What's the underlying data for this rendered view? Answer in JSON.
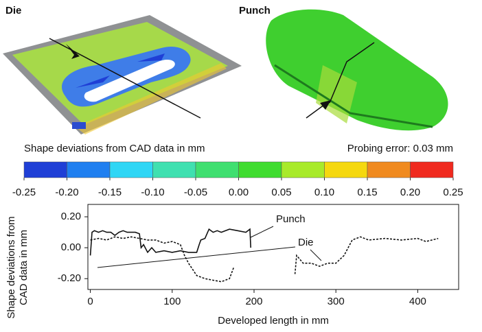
{
  "images": [
    {
      "label": "Die"
    },
    {
      "label": "Punch"
    }
  ],
  "chart_data": [
    {
      "type": "colorbar",
      "title": "Shape deviations from CAD data in mm",
      "annotation": "Probing error: 0.03 mm",
      "ticks": [
        -0.25,
        {
          "value": -0.2,
          "label": "-0.20"
        },
        -0.15,
        {
          "value": -0.1,
          "label": "-0.10"
        },
        -0.05,
        {
          "value": 0,
          "label": "0.00"
        },
        0.05,
        {
          "value": 0.1,
          "label": "0.10"
        },
        0.15,
        {
          "value": 0.2,
          "label": "0.20"
        },
        0.25
      ],
      "colors": [
        "#1f3fd6",
        "#1f7ff0",
        "#2fd6f5",
        "#3fe0b0",
        "#3fdf70",
        "#3fdc2f",
        "#a8ea2a",
        "#f5d80f",
        "#f08a1f",
        "#f02a1f"
      ],
      "xlim": [
        -0.25,
        0.25
      ]
    },
    {
      "type": "line",
      "x_label": "Developed length in mm",
      "y_label": "Shape deviations from CAD data in mm",
      "xlim": [
        -3,
        450
      ],
      "ylim": [
        -0.27,
        0.28
      ],
      "xticks": [
        0,
        100,
        200,
        300,
        400
      ],
      "yticks": [
        {
          "value": 0.2,
          "label": "0.20"
        },
        {
          "value": 0,
          "label": "0.00"
        },
        {
          "value": -0.2,
          "label": "-0.20"
        }
      ],
      "series": [
        {
          "name": "Punch",
          "color": "#111111",
          "dash": false,
          "x": [
            0,
            2,
            5,
            10,
            15,
            20,
            25,
            30,
            35,
            40,
            45,
            50,
            55,
            60,
            62,
            65,
            70,
            75,
            80,
            90,
            100,
            110,
            120,
            130,
            133,
            135,
            140,
            145,
            150,
            155,
            160,
            170,
            180,
            190,
            195,
            196
          ],
          "values": [
            -0.05,
            0.1,
            0.11,
            0.1,
            0.11,
            0.1,
            0.1,
            0.08,
            0.1,
            0.11,
            0.1,
            0.1,
            0.1,
            0.09,
            0.0,
            0.02,
            -0.03,
            0.0,
            -0.03,
            -0.02,
            -0.03,
            -0.02,
            -0.03,
            -0.03,
            0.02,
            0.05,
            0.06,
            0.12,
            0.1,
            0.11,
            0.1,
            0.12,
            0.11,
            0.1,
            0.12,
            0.0
          ]
        },
        {
          "name": "Die",
          "color": "#111111",
          "dash": true,
          "x": [
            0,
            10,
            20,
            30,
            40,
            50,
            60,
            70,
            80,
            90,
            100,
            110,
            115,
            120,
            130,
            140,
            150,
            160,
            170,
            175,
            215,
            250,
            252,
            260,
            270,
            280,
            290,
            300,
            310,
            320,
            330,
            340,
            360,
            380,
            400,
            410,
            425
          ],
          "values": [
            0.05,
            0.06,
            0.05,
            0.07,
            0.06,
            0.07,
            0.06,
            0.05,
            0.05,
            0.03,
            0.04,
            0.02,
            -0.05,
            -0.1,
            -0.18,
            -0.2,
            -0.21,
            -0.22,
            -0.2,
            -0.13,
            null,
            -0.17,
            -0.05,
            -0.1,
            -0.1,
            -0.12,
            -0.1,
            -0.1,
            -0.05,
            0.05,
            0.07,
            0.05,
            0.06,
            0.05,
            0.06,
            0.04,
            0.06
          ]
        }
      ]
    }
  ]
}
